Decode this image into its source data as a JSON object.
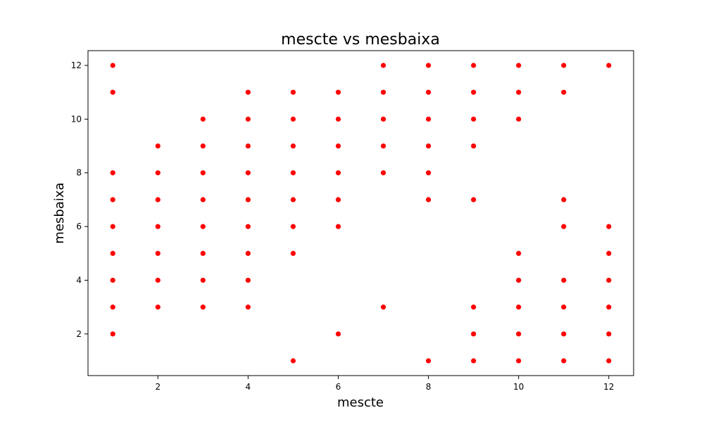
{
  "chart_data": {
    "type": "scatter",
    "title": "mescte vs mesbaixa",
    "xlabel": "mescte",
    "ylabel": "mesbaixa",
    "xlim": [
      0.45,
      12.55
    ],
    "ylim": [
      0.45,
      12.55
    ],
    "xticks": [
      2,
      4,
      6,
      8,
      10,
      12
    ],
    "yticks": [
      2,
      4,
      6,
      8,
      10,
      12
    ],
    "grid": false,
    "marker_color": "#ff0000",
    "points": [
      [
        1,
        12
      ],
      [
        1,
        11
      ],
      [
        1,
        8
      ],
      [
        1,
        7
      ],
      [
        1,
        6
      ],
      [
        1,
        5
      ],
      [
        1,
        4
      ],
      [
        1,
        3
      ],
      [
        1,
        2
      ],
      [
        2,
        9
      ],
      [
        2,
        8
      ],
      [
        2,
        7
      ],
      [
        2,
        6
      ],
      [
        2,
        5
      ],
      [
        2,
        4
      ],
      [
        2,
        3
      ],
      [
        3,
        10
      ],
      [
        3,
        9
      ],
      [
        3,
        8
      ],
      [
        3,
        7
      ],
      [
        3,
        6
      ],
      [
        3,
        5
      ],
      [
        3,
        4
      ],
      [
        3,
        3
      ],
      [
        4,
        11
      ],
      [
        4,
        10
      ],
      [
        4,
        9
      ],
      [
        4,
        8
      ],
      [
        4,
        7
      ],
      [
        4,
        6
      ],
      [
        4,
        5
      ],
      [
        4,
        4
      ],
      [
        4,
        3
      ],
      [
        5,
        11
      ],
      [
        5,
        10
      ],
      [
        5,
        9
      ],
      [
        5,
        8
      ],
      [
        5,
        7
      ],
      [
        5,
        6
      ],
      [
        5,
        5
      ],
      [
        5,
        1
      ],
      [
        6,
        11
      ],
      [
        6,
        10
      ],
      [
        6,
        9
      ],
      [
        6,
        8
      ],
      [
        6,
        7
      ],
      [
        6,
        6
      ],
      [
        6,
        2
      ],
      [
        7,
        12
      ],
      [
        7,
        11
      ],
      [
        7,
        10
      ],
      [
        7,
        9
      ],
      [
        7,
        8
      ],
      [
        7,
        3
      ],
      [
        8,
        12
      ],
      [
        8,
        11
      ],
      [
        8,
        10
      ],
      [
        8,
        9
      ],
      [
        8,
        8
      ],
      [
        8,
        7
      ],
      [
        8,
        1
      ],
      [
        9,
        12
      ],
      [
        9,
        11
      ],
      [
        9,
        10
      ],
      [
        9,
        9
      ],
      [
        9,
        7
      ],
      [
        9,
        3
      ],
      [
        9,
        2
      ],
      [
        9,
        1
      ],
      [
        10,
        12
      ],
      [
        10,
        11
      ],
      [
        10,
        10
      ],
      [
        10,
        5
      ],
      [
        10,
        4
      ],
      [
        10,
        3
      ],
      [
        10,
        2
      ],
      [
        10,
        1
      ],
      [
        11,
        12
      ],
      [
        11,
        11
      ],
      [
        11,
        7
      ],
      [
        11,
        6
      ],
      [
        11,
        4
      ],
      [
        11,
        3
      ],
      [
        11,
        2
      ],
      [
        11,
        1
      ],
      [
        12,
        12
      ],
      [
        12,
        6
      ],
      [
        12,
        5
      ],
      [
        12,
        4
      ],
      [
        12,
        3
      ],
      [
        12,
        2
      ],
      [
        12,
        1
      ]
    ]
  }
}
